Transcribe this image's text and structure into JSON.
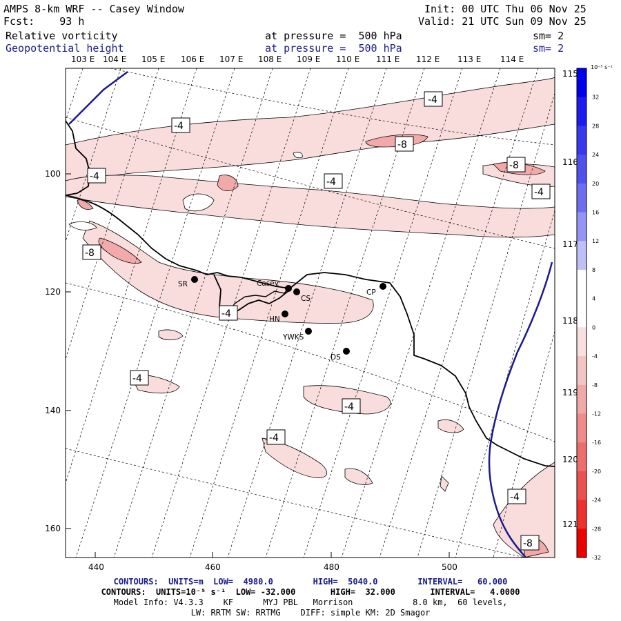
{
  "header": {
    "title": "AMPS 8-km WRF -- Casey Window",
    "forecast": "Fcst:    93 h",
    "init": "Init: 00 UTC Thu 06 Nov 25",
    "valid": "Valid: 21 UTC Sun 09 Nov 25",
    "field1_name": "Relative vorticity",
    "field1_level": "at pressure =  500 hPa",
    "field1_sm": "sm= 2",
    "field2_name": "Geopotential height",
    "field2_level": "at pressure =  500 hPa",
    "field2_sm": "sm= 2"
  },
  "top_lon_labels": [
    "103 E",
    "104 E",
    "105 E",
    "106 E",
    "107 E",
    "108 E",
    "109 E",
    "110 E",
    "111 E",
    "112 E",
    "113 E",
    "114 E"
  ],
  "right_lon_labels": [
    "115 E",
    "116 E",
    "117 E",
    "118 E",
    "119 E",
    "120 E",
    "121 E"
  ],
  "x_axis_labels": [
    "440",
    "460",
    "480",
    "500"
  ],
  "y_axis_labels": [
    "100",
    "120",
    "140",
    "160"
  ],
  "stations": [
    {
      "name": "SR"
    },
    {
      "name": "Casey"
    },
    {
      "name": "CS"
    },
    {
      "name": "HN"
    },
    {
      "name": "YWKS"
    },
    {
      "name": "DS"
    },
    {
      "name": "CP"
    }
  ],
  "contour_labels": [
    "-4",
    "-4",
    "-4",
    "-8",
    "-8",
    "-4",
    "-4",
    "-8",
    "-4",
    "-4",
    "-4",
    "-4",
    "-4",
    "-8"
  ],
  "colorbar": {
    "unit": "10⁻⁵ s⁻¹",
    "labels": [
      "32",
      "28",
      "24",
      "20",
      "16",
      "12",
      "8",
      "4",
      "0",
      "-4",
      "-8",
      "-12",
      "-16",
      "-20",
      "-24",
      "-28",
      "-32"
    ],
    "colors": [
      "#0000ee",
      "#1c1cee",
      "#3838ee",
      "#5050ee",
      "#6e6ef0",
      "#9494f4",
      "#c0c0f8",
      "#ffffff",
      "#ffffff",
      "#f8e0e0",
      "#f4c4c4",
      "#f0a8a8",
      "#f08c8c",
      "#ee6e6e",
      "#ee5050",
      "#ee3030",
      "#ee0000"
    ]
  },
  "footer": {
    "line1": "CONTOURS:  UNITS=m  LOW=  4980.0        HIGH=  5040.0        INTERVAL=   60.000",
    "line2": "CONTOURS:  UNITS=10⁻⁵ s⁻¹  LOW= -32.000       HIGH=  32.000       INTERVAL=   4.0000",
    "line3": "Model Info: V4.3.3    KF      MYJ PBL   Morrison            8.0 km,  60 levels,",
    "line4": "LW: RRTM SW: RRTMG    DIFF: simple KM: 2D Smagor"
  }
}
